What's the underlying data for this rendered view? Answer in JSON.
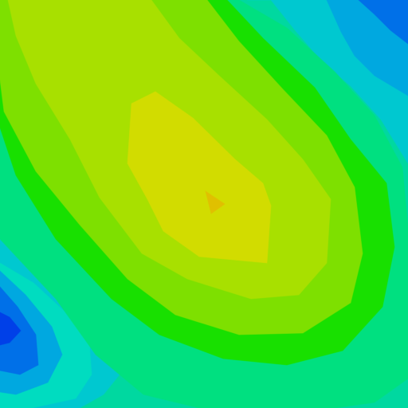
{
  "map": {
    "kind": "filled-contour",
    "palette": {
      "band_0": "#00d8a0",
      "band_1": "#00c8d0",
      "band_2": "#00dcc0",
      "band_3": "#00e080",
      "band_4": "#18e000",
      "band_5": "#7ee000",
      "band_6": "#a8e000",
      "band_7": "#d2dc00",
      "band_8": "#e0c000",
      "cold_1": "#00a8e0",
      "cold_2": "#0070e8",
      "cold_3": "#0040e8"
    },
    "grid_visible": false,
    "labels_visible": false
  }
}
